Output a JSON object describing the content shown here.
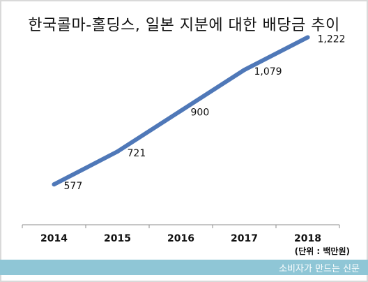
{
  "chart_data": {
    "type": "line",
    "title": "한국콜마-홀딩스, 일본 지분에 대한 배당금 추이",
    "categories": [
      "2014",
      "2015",
      "2016",
      "2017",
      "2018"
    ],
    "series": [
      {
        "values": [
          577,
          721,
          900,
          1079,
          1222
        ],
        "labels": [
          "577",
          "721",
          "900",
          "1,079",
          "1,222"
        ]
      }
    ],
    "ylim": [
      400,
      1300
    ],
    "grid": false,
    "legend": "none",
    "line_color": "#4f78b8",
    "unit_note": "(단위 : 백만원)"
  },
  "footer": {
    "source": "소비자가 만드는 신문"
  }
}
